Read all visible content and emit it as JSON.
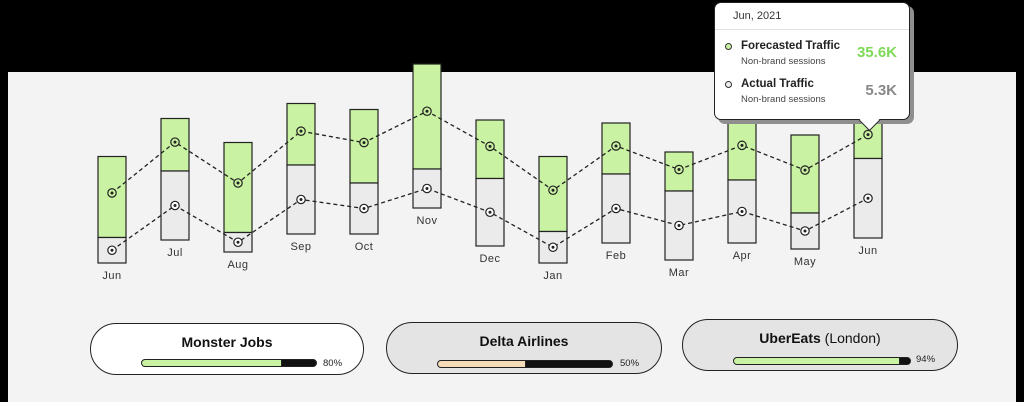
{
  "chart_data": {
    "type": "bar",
    "categories": [
      "Jun",
      "Jul",
      "Aug",
      "Sep",
      "Oct",
      "Nov",
      "Dec",
      "Jan",
      "Feb",
      "Mar",
      "Apr",
      "May",
      "Jun"
    ],
    "series": [
      {
        "name": "Forecasted Traffic",
        "values": [
          0.71,
          0.81,
          0.73,
          0.87,
          0.83,
          0.96,
          0.84,
          0.71,
          0.8,
          0.72,
          0.84,
          0.76,
          0.82
        ]
      },
      {
        "name": "Actual Traffic",
        "values": [
          0.17,
          0.46,
          0.13,
          0.46,
          0.34,
          0.26,
          0.45,
          0.21,
          0.46,
          0.46,
          0.42,
          0.24,
          0.53
        ]
      }
    ],
    "colors": {
      "forecast": "#c9f2a2",
      "actual": "#ebebeb",
      "forecast_accent": "#7ed957"
    }
  },
  "tooltip": {
    "date": "Jun, 2021",
    "rows": [
      {
        "name": "Forecasted Traffic",
        "sub": "Non-brand sessions",
        "value": "35.6K",
        "color": "#7ed957"
      },
      {
        "name": "Actual Traffic",
        "sub": "Non-brand sessions",
        "value": "5.3K",
        "color": "#888888"
      }
    ]
  },
  "clients": [
    {
      "name": "Monster Jobs",
      "suffix": "",
      "percent_label": "80%",
      "progress": 0.8,
      "color": "#c9f2a2"
    },
    {
      "name": "Delta Airlines",
      "suffix": "",
      "percent_label": "50%",
      "progress": 0.5,
      "color": "#f6dbb8"
    },
    {
      "name": "UberEats",
      "suffix": " (London)",
      "percent_label": "94%",
      "progress": 0.94,
      "color": "#c9f2a2"
    }
  ]
}
